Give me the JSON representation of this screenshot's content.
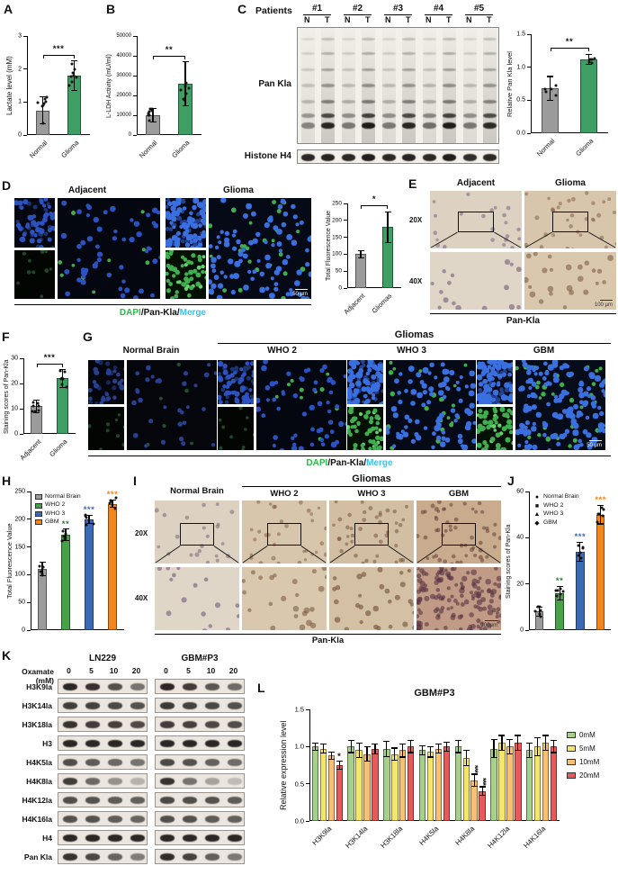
{
  "panels": {
    "A": {
      "label": "A"
    },
    "B": {
      "label": "B"
    },
    "C": {
      "label": "C",
      "patients_label": "Patients",
      "patient_ids": [
        "#1",
        "#2",
        "#3",
        "#4",
        "#5"
      ],
      "lane_labels": [
        "N",
        "T"
      ],
      "blot_label": "Pan Kla",
      "loading_label": "Histone H4",
      "pan_kla_lanes": [
        0.45,
        0.9,
        0.5,
        0.95,
        0.5,
        0.9,
        0.55,
        0.95,
        0.5,
        0.88
      ],
      "h4_lanes": [
        0.9,
        0.92,
        0.9,
        0.95,
        0.9,
        0.92,
        0.9,
        0.95,
        0.88,
        0.9
      ]
    },
    "D": {
      "label": "D",
      "groups": [
        "Adjacent",
        "Glioma"
      ],
      "scalebar": "50 µm",
      "caption": [
        {
          "text": "DAPI",
          "color": "#2eb84b"
        },
        {
          "text": "/",
          "color": "#111111"
        },
        {
          "text": "Pan-Kla",
          "color": "#111111"
        },
        {
          "text": "/",
          "color": "#111111"
        },
        {
          "text": "Merge",
          "color": "#3fc1e8"
        }
      ]
    },
    "E": {
      "label": "E",
      "columns": [
        "Adjacent",
        "Glioma"
      ],
      "rows": [
        "20X",
        "40X"
      ],
      "caption": "Pan-Kla",
      "scalebar": "100 µm"
    },
    "F": {
      "label": "F"
    },
    "G": {
      "label": "G",
      "group_header": "Gliomas",
      "normal_label": "Normal Brain",
      "who_labels": [
        "WHO 2",
        "WHO 3",
        "GBM"
      ],
      "scalebar": "50 µm",
      "caption": [
        {
          "text": "DAPI",
          "color": "#2eb84b"
        },
        {
          "text": "/",
          "color": "#111111"
        },
        {
          "text": "Pan-Kla",
          "color": "#111111"
        },
        {
          "text": "/",
          "color": "#111111"
        },
        {
          "text": "Merge",
          "color": "#3fc1e8"
        }
      ]
    },
    "H": {
      "label": "H"
    },
    "I": {
      "label": "I",
      "group_header": "Gliomas",
      "normal_label": "Normal Brain",
      "who_labels": [
        "WHO 2",
        "WHO 3",
        "GBM"
      ],
      "rows": [
        "20X",
        "40X"
      ],
      "caption": "Pan-Kla",
      "scalebar": "100µm"
    },
    "J": {
      "label": "J"
    },
    "K": {
      "label": "K",
      "cell_lines": [
        "LN229",
        "GBM#P3"
      ],
      "treatment_label": "Oxamate (mM)",
      "doses": [
        "0",
        "5",
        "10",
        "20"
      ],
      "rows": [
        {
          "label": "H3K9la",
          "ln229": [
            0.9,
            0.85,
            0.7,
            0.55
          ],
          "gbmp3": [
            0.9,
            0.8,
            0.68,
            0.58
          ]
        },
        {
          "label": "H3K14la",
          "ln229": [
            0.8,
            0.78,
            0.74,
            0.7
          ],
          "gbmp3": [
            0.82,
            0.78,
            0.75,
            0.7
          ]
        },
        {
          "label": "H3K18la",
          "ln229": [
            0.85,
            0.8,
            0.78,
            0.74
          ],
          "gbmp3": [
            0.8,
            0.78,
            0.75,
            0.72
          ]
        },
        {
          "label": "H3",
          "ln229": [
            0.9,
            0.9,
            0.9,
            0.9
          ],
          "gbmp3": [
            0.9,
            0.9,
            0.9,
            0.9
          ]
        },
        {
          "label": "H4K5la",
          "ln229": [
            0.72,
            0.66,
            0.6,
            0.55
          ],
          "gbmp3": [
            0.75,
            0.7,
            0.64,
            0.58
          ]
        },
        {
          "label": "H4K8la",
          "ln229": [
            0.8,
            0.6,
            0.4,
            0.25
          ],
          "gbmp3": [
            0.85,
            0.55,
            0.32,
            0.2
          ]
        },
        {
          "label": "H4K12la",
          "ln229": [
            0.72,
            0.7,
            0.66,
            0.64
          ],
          "gbmp3": [
            0.75,
            0.72,
            0.7,
            0.66
          ]
        },
        {
          "label": "H4K16la",
          "ln229": [
            0.7,
            0.7,
            0.66,
            0.62
          ],
          "gbmp3": [
            0.72,
            0.7,
            0.66,
            0.64
          ]
        },
        {
          "label": "H4",
          "ln229": [
            0.9,
            0.9,
            0.9,
            0.9
          ],
          "gbmp3": [
            0.9,
            0.9,
            0.9,
            0.9
          ]
        },
        {
          "label": "Pan Kla",
          "ln229": [
            0.85,
            0.75,
            0.62,
            0.5
          ],
          "gbmp3": [
            0.88,
            0.78,
            0.64,
            0.52
          ]
        }
      ]
    },
    "L": {
      "label": "L"
    }
  },
  "chart_data": [
    {
      "panel": "A",
      "type": "bar",
      "ylabel": "Lactate level (mM)",
      "ymax": 3,
      "yticks": [
        "0",
        "1",
        "2",
        "3"
      ],
      "categories": [
        "Normal",
        "Glioma"
      ],
      "values": [
        0.75,
        1.8
      ],
      "errors": [
        0.4,
        0.45
      ],
      "colors": [
        "#9b9b9b",
        "#3f9e63"
      ],
      "sig": "***",
      "dots": 8
    },
    {
      "panel": "B",
      "type": "bar",
      "ylabel": "L-LDH Activity (mU/ml)",
      "ymax": 50000,
      "yticks": [
        "0",
        "10000",
        "20000",
        "30000",
        "40000",
        "50000"
      ],
      "categories": [
        "Normal",
        "Glioma"
      ],
      "values": [
        10000,
        26000
      ],
      "errors": [
        3500,
        11000
      ],
      "colors": [
        "#9b9b9b",
        "#3f9e63"
      ],
      "sig": "**",
      "dots": 8
    },
    {
      "panel": "C",
      "type": "bar",
      "ylabel": "Relative Pan Kla level",
      "ymax": 1.5,
      "yticks": [
        "0.0",
        "0.5",
        "1.0",
        "1.5"
      ],
      "categories": [
        "Normal",
        "Glioma"
      ],
      "values": [
        0.68,
        1.12
      ],
      "errors": [
        0.18,
        0.08
      ],
      "colors": [
        "#9b9b9b",
        "#3f9e63"
      ],
      "sig": "**",
      "dots": 5
    },
    {
      "panel": "D",
      "type": "bar",
      "ylabel": "Total Fluorescence Value",
      "ymax": 250,
      "yticks": [
        "0",
        "50",
        "100",
        "150",
        "200",
        "250"
      ],
      "categories": [
        "Adjacent",
        "Gliomas"
      ],
      "values": [
        100,
        180
      ],
      "errors": [
        10,
        45
      ],
      "colors": [
        "#9b9b9b",
        "#3f9e63"
      ],
      "sig": "*",
      "dots": 0
    },
    {
      "panel": "F",
      "type": "bar",
      "ylabel": "Staining scores of Pan-Kla",
      "ymax": 30,
      "yticks": [
        "0",
        "10",
        "20",
        "30"
      ],
      "categories": [
        "Adjacent",
        "Glioma"
      ],
      "values": [
        11,
        22
      ],
      "errors": [
        2.5,
        3.5
      ],
      "colors": [
        "#9b9b9b",
        "#3f9e63"
      ],
      "sig": "***",
      "dots": 7
    },
    {
      "panel": "H",
      "type": "bar",
      "ylabel": "Total Fluorescence Value",
      "ymax": 250,
      "yticks": [
        "0",
        "50",
        "100",
        "150",
        "200",
        "250"
      ],
      "categories": [
        "Normal Brain",
        "WHO 2",
        "WHO 3",
        "GBM"
      ],
      "values": [
        110,
        172,
        200,
        228
      ],
      "errors": [
        12,
        10,
        7,
        7
      ],
      "colors": [
        "#9b9b9b",
        "#46a147",
        "#3b6bb5",
        "#f0861c"
      ],
      "sig_per_bar": [
        "",
        "**",
        "***",
        "***"
      ],
      "sig_colors": [
        "",
        "#2f7d32",
        "#3b6bb5",
        "#f0861c"
      ],
      "legend": {
        "pos": "inside",
        "items": [
          {
            "label": "Normal Brain",
            "color": "#9b9b9b"
          },
          {
            "label": "WHO 2",
            "color": "#46a147"
          },
          {
            "label": "WHO 3",
            "color": "#3b6bb5"
          },
          {
            "label": "GBM",
            "color": "#f0861c"
          }
        ]
      },
      "dots": 5,
      "no_xlabels": true
    },
    {
      "panel": "J",
      "type": "bar",
      "ylabel": "Staining scores of Pan-Kla",
      "ymax": 60,
      "yticks": [
        "0",
        "20",
        "40",
        "60"
      ],
      "categories": [
        "Normal Brain",
        "WHO 2",
        "WHO 3",
        "GBM"
      ],
      "values": [
        8,
        16,
        34,
        50
      ],
      "errors": [
        2,
        3,
        4,
        4
      ],
      "colors": [
        "#9b9b9b",
        "#46a147",
        "#3b6bb5",
        "#f0861c"
      ],
      "sig_per_bar": [
        "",
        "**",
        "***",
        "***"
      ],
      "sig_colors": [
        "",
        "#2f7d32",
        "#3b6bb5",
        "#f0861c"
      ],
      "legend": {
        "pos": "inside",
        "items": [
          {
            "label": "Normal Brain",
            "marker": "●"
          },
          {
            "label": "WHO 2",
            "marker": "■"
          },
          {
            "label": "WHO 3",
            "marker": "▲"
          },
          {
            "label": "GBM",
            "marker": "◆"
          }
        ]
      },
      "dots": 6,
      "no_xlabels": true
    },
    {
      "panel": "L",
      "type": "grouped-bar",
      "title": "GBM#P3",
      "ylabel": "Relative expression level",
      "ymax": 1.5,
      "yticks": [
        "0.0",
        "0.5",
        "1.0",
        "1.5"
      ],
      "categories": [
        "H3K9la",
        "H3K14la",
        "H3K18la",
        "H4K5la",
        "H4K8la",
        "H4K12la",
        "H4K16la"
      ],
      "series": [
        {
          "name": "0mM",
          "color": "#a8d08d",
          "values": [
            1.0,
            1.0,
            0.97,
            0.95,
            1.0,
            0.97,
            0.95
          ]
        },
        {
          "name": "5mM",
          "color": "#f5e56b",
          "values": [
            0.97,
            0.95,
            0.9,
            0.93,
            0.85,
            1.05,
            1.0
          ]
        },
        {
          "name": "10mM",
          "color": "#f9c074",
          "values": [
            0.88,
            0.9,
            0.95,
            0.97,
            0.55,
            1.0,
            1.05
          ]
        },
        {
          "name": "20mM",
          "color": "#e85959",
          "values": [
            0.75,
            0.97,
            1.0,
            1.0,
            0.4,
            1.05,
            1.0
          ]
        }
      ],
      "series_errors": [
        [
          0.05,
          0.08,
          0.1,
          0.06,
          0.08,
          0.12,
          0.1
        ],
        [
          0.06,
          0.1,
          0.08,
          0.07,
          0.1,
          0.1,
          0.12
        ],
        [
          0.05,
          0.1,
          0.09,
          0.06,
          0.08,
          0.1,
          0.1
        ],
        [
          0.05,
          0.07,
          0.08,
          0.06,
          0.06,
          0.1,
          0.08
        ]
      ],
      "annotations": [
        {
          "cat": 0,
          "series": 3,
          "text": "*"
        },
        {
          "cat": 4,
          "series": 2,
          "text": "***"
        },
        {
          "cat": 4,
          "series": 3,
          "text": "***"
        }
      ],
      "legend": {
        "pos": "external",
        "items": [
          {
            "label": "0mM",
            "color": "#a8d08d"
          },
          {
            "label": "5mM",
            "color": "#f5e56b"
          },
          {
            "label": "10mM",
            "color": "#f9c074"
          },
          {
            "label": "20mM",
            "color": "#e85959"
          }
        ]
      }
    }
  ]
}
